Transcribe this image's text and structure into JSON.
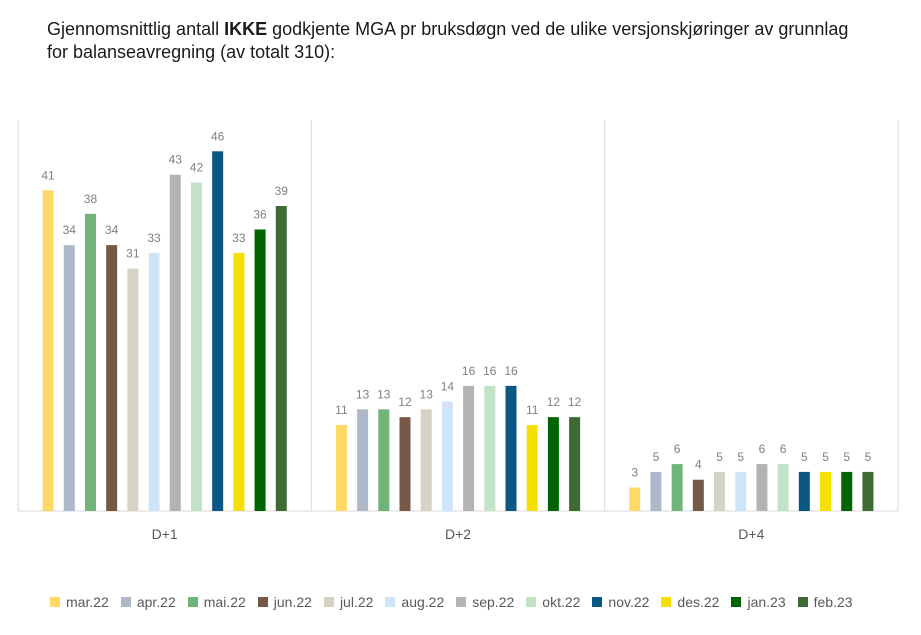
{
  "title": {
    "pre": "Gjennomsnittlig antall ",
    "bold": "IKKE",
    "post": " godkjente MGA pr bruksdøgn ved de ulike versjonskjøringer av grunnlag for balanseavregning (av totalt 310):"
  },
  "colors": {
    "axis": "#d9d9d9",
    "label": "#808080",
    "text": "#595959"
  },
  "chart_data": {
    "type": "bar",
    "title": "Gjennomsnittlig antall IKKE godkjente MGA pr bruksdøgn ved de ulike versjonskjøringer av grunnlag for balanseavregning (av totalt 310):",
    "categories": [
      "D+1",
      "D+2",
      "D+4"
    ],
    "ylim": [
      0,
      50
    ],
    "grid": false,
    "legend_position": "bottom",
    "series": [
      {
        "name": "mar.22",
        "color": "#ffd966",
        "values": [
          41,
          11,
          3
        ]
      },
      {
        "name": "apr.22",
        "color": "#adb9ca",
        "values": [
          34,
          13,
          5
        ]
      },
      {
        "name": "mai.22",
        "color": "#70b47a",
        "values": [
          38,
          13,
          6
        ]
      },
      {
        "name": "jun.22",
        "color": "#765848",
        "values": [
          34,
          12,
          4
        ]
      },
      {
        "name": "jul.22",
        "color": "#d6d2c4",
        "values": [
          31,
          13,
          5
        ]
      },
      {
        "name": "aug.22",
        "color": "#cfe5f7",
        "values": [
          33,
          14,
          5
        ]
      },
      {
        "name": "sep.22",
        "color": "#b3b3b3",
        "values": [
          43,
          16,
          6
        ]
      },
      {
        "name": "okt.22",
        "color": "#c3e3c6",
        "values": [
          42,
          16,
          6
        ]
      },
      {
        "name": "nov.22",
        "color": "#0a5784",
        "values": [
          46,
          16,
          5
        ]
      },
      {
        "name": "des.22",
        "color": "#f5e000",
        "values": [
          33,
          11,
          5
        ]
      },
      {
        "name": "jan.23",
        "color": "#006400",
        "values": [
          36,
          12,
          5
        ]
      },
      {
        "name": "feb.23",
        "color": "#3e6b34",
        "values": [
          39,
          12,
          5
        ]
      }
    ]
  }
}
